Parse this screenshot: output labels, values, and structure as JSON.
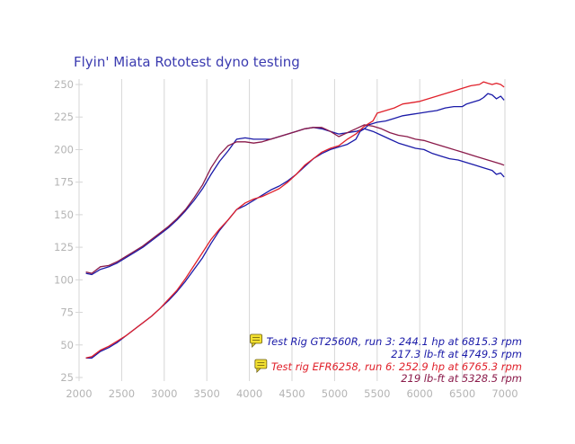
{
  "chart_data": {
    "type": "line",
    "title": "Flyin' Miata Rototest dyno testing",
    "xlabel": "",
    "ylabel": "",
    "xlim": [
      2000,
      7000
    ],
    "ylim": [
      25,
      260
    ],
    "x_ticks": [
      "2000",
      "2500",
      "3000",
      "3500",
      "4000",
      "4500",
      "5000",
      "5500",
      "6000",
      "6500",
      "7000"
    ],
    "y_ticks": [
      "25",
      "50",
      "75",
      "100",
      "125",
      "150",
      "175",
      "200",
      "225",
      "250"
    ],
    "grid": "vertical",
    "legend_position": "bottom-right",
    "legend": [
      {
        "text": "Test Rig GT2560R, run 3: 244.1 hp at 6815.3 rpm",
        "color": "#1a1aa8",
        "icon": "note-icon"
      },
      {
        "text": "217.3 lb-ft at 4749.5 rpm",
        "color": "#1a1aa8",
        "icon": ""
      },
      {
        "text": "Test rig EFR6258, run 6: 252.9 hp at 6765.3 rpm",
        "color": "#e0202a",
        "icon": "note-icon"
      },
      {
        "text": "219 lb-ft at 5328.5 rpm",
        "color": "#8a1a4a",
        "icon": ""
      }
    ],
    "series": [
      {
        "key": "gt_hp",
        "color": "#1a1aa8",
        "points": [
          [
            2080,
            40
          ],
          [
            2150,
            40
          ],
          [
            2250,
            45
          ],
          [
            2350,
            48
          ],
          [
            2450,
            52
          ],
          [
            2550,
            57
          ],
          [
            2650,
            62
          ],
          [
            2750,
            67
          ],
          [
            2850,
            72
          ],
          [
            2950,
            78
          ],
          [
            3050,
            84
          ],
          [
            3150,
            91
          ],
          [
            3250,
            99
          ],
          [
            3350,
            108
          ],
          [
            3450,
            117
          ],
          [
            3550,
            128
          ],
          [
            3650,
            138
          ],
          [
            3750,
            146
          ],
          [
            3850,
            154
          ],
          [
            3950,
            157
          ],
          [
            4050,
            161
          ],
          [
            4150,
            165
          ],
          [
            4250,
            169
          ],
          [
            4350,
            172
          ],
          [
            4450,
            176
          ],
          [
            4550,
            181
          ],
          [
            4650,
            187
          ],
          [
            4750,
            193
          ],
          [
            4850,
            197
          ],
          [
            4950,
            200
          ],
          [
            5050,
            202
          ],
          [
            5150,
            204
          ],
          [
            5250,
            208
          ],
          [
            5300,
            214
          ],
          [
            5350,
            216
          ],
          [
            5400,
            219
          ],
          [
            5500,
            221
          ],
          [
            5600,
            222
          ],
          [
            5700,
            224
          ],
          [
            5800,
            226
          ],
          [
            5900,
            227
          ],
          [
            6000,
            228
          ],
          [
            6100,
            229
          ],
          [
            6200,
            230
          ],
          [
            6300,
            232
          ],
          [
            6400,
            233
          ],
          [
            6500,
            233
          ],
          [
            6550,
            235
          ],
          [
            6600,
            236
          ],
          [
            6700,
            238
          ],
          [
            6750,
            240
          ],
          [
            6800,
            243
          ],
          [
            6850,
            242
          ],
          [
            6900,
            239
          ],
          [
            6950,
            241
          ],
          [
            6990,
            238
          ]
        ]
      },
      {
        "key": "gt_tq",
        "color": "#1a1aa8",
        "points": [
          [
            2080,
            105
          ],
          [
            2150,
            104
          ],
          [
            2250,
            108
          ],
          [
            2350,
            110
          ],
          [
            2450,
            113
          ],
          [
            2550,
            117
          ],
          [
            2650,
            121
          ],
          [
            2750,
            125
          ],
          [
            2850,
            130
          ],
          [
            2950,
            135
          ],
          [
            3050,
            140
          ],
          [
            3150,
            146
          ],
          [
            3250,
            153
          ],
          [
            3350,
            161
          ],
          [
            3450,
            170
          ],
          [
            3550,
            181
          ],
          [
            3650,
            191
          ],
          [
            3750,
            199
          ],
          [
            3850,
            208
          ],
          [
            3950,
            209
          ],
          [
            4050,
            208
          ],
          [
            4150,
            208
          ],
          [
            4250,
            208
          ],
          [
            4350,
            210
          ],
          [
            4450,
            212
          ],
          [
            4550,
            214
          ],
          [
            4650,
            216
          ],
          [
            4750,
            217
          ],
          [
            4850,
            216
          ],
          [
            4950,
            214
          ],
          [
            5050,
            212
          ],
          [
            5150,
            213
          ],
          [
            5250,
            214
          ],
          [
            5350,
            216
          ],
          [
            5450,
            214
          ],
          [
            5550,
            211
          ],
          [
            5650,
            208
          ],
          [
            5750,
            205
          ],
          [
            5850,
            203
          ],
          [
            5950,
            201
          ],
          [
            6050,
            200
          ],
          [
            6150,
            197
          ],
          [
            6250,
            195
          ],
          [
            6350,
            193
          ],
          [
            6450,
            192
          ],
          [
            6550,
            190
          ],
          [
            6650,
            188
          ],
          [
            6750,
            186
          ],
          [
            6850,
            184
          ],
          [
            6900,
            181
          ],
          [
            6950,
            182
          ],
          [
            6990,
            179
          ]
        ]
      },
      {
        "key": "efr_hp",
        "color": "#e0202a",
        "points": [
          [
            2080,
            40
          ],
          [
            2150,
            41
          ],
          [
            2250,
            46
          ],
          [
            2350,
            49
          ],
          [
            2450,
            53
          ],
          [
            2550,
            57
          ],
          [
            2650,
            62
          ],
          [
            2750,
            67
          ],
          [
            2850,
            72
          ],
          [
            2950,
            78
          ],
          [
            3050,
            85
          ],
          [
            3150,
            92
          ],
          [
            3250,
            101
          ],
          [
            3350,
            111
          ],
          [
            3450,
            121
          ],
          [
            3550,
            131
          ],
          [
            3650,
            139
          ],
          [
            3750,
            146
          ],
          [
            3850,
            154
          ],
          [
            3950,
            159
          ],
          [
            4050,
            162
          ],
          [
            4150,
            164
          ],
          [
            4250,
            167
          ],
          [
            4350,
            170
          ],
          [
            4450,
            175
          ],
          [
            4550,
            181
          ],
          [
            4650,
            188
          ],
          [
            4750,
            193
          ],
          [
            4850,
            198
          ],
          [
            4950,
            201
          ],
          [
            5050,
            203
          ],
          [
            5150,
            208
          ],
          [
            5250,
            212
          ],
          [
            5350,
            218
          ],
          [
            5450,
            222
          ],
          [
            5500,
            228
          ],
          [
            5600,
            230
          ],
          [
            5700,
            232
          ],
          [
            5800,
            235
          ],
          [
            5900,
            236
          ],
          [
            6000,
            237
          ],
          [
            6100,
            239
          ],
          [
            6200,
            241
          ],
          [
            6300,
            243
          ],
          [
            6400,
            245
          ],
          [
            6500,
            247
          ],
          [
            6600,
            249
          ],
          [
            6700,
            250
          ],
          [
            6750,
            252
          ],
          [
            6800,
            251
          ],
          [
            6850,
            250
          ],
          [
            6900,
            251
          ],
          [
            6950,
            250
          ],
          [
            6990,
            248
          ]
        ]
      },
      {
        "key": "efr_tq",
        "color": "#8a1a4a",
        "points": [
          [
            2080,
            106
          ],
          [
            2150,
            105
          ],
          [
            2250,
            110
          ],
          [
            2350,
            111
          ],
          [
            2450,
            114
          ],
          [
            2550,
            118
          ],
          [
            2650,
            122
          ],
          [
            2750,
            126
          ],
          [
            2850,
            131
          ],
          [
            2950,
            136
          ],
          [
            3050,
            141
          ],
          [
            3150,
            147
          ],
          [
            3250,
            154
          ],
          [
            3350,
            163
          ],
          [
            3450,
            173
          ],
          [
            3550,
            186
          ],
          [
            3650,
            196
          ],
          [
            3750,
            203
          ],
          [
            3850,
            206
          ],
          [
            3950,
            206
          ],
          [
            4050,
            205
          ],
          [
            4150,
            206
          ],
          [
            4250,
            208
          ],
          [
            4350,
            210
          ],
          [
            4450,
            212
          ],
          [
            4550,
            214
          ],
          [
            4650,
            216
          ],
          [
            4750,
            217
          ],
          [
            4850,
            217
          ],
          [
            4950,
            214
          ],
          [
            5050,
            210
          ],
          [
            5150,
            213
          ],
          [
            5250,
            216
          ],
          [
            5350,
            219
          ],
          [
            5450,
            218
          ],
          [
            5550,
            216
          ],
          [
            5650,
            213
          ],
          [
            5750,
            211
          ],
          [
            5850,
            210
          ],
          [
            5950,
            208
          ],
          [
            6050,
            207
          ],
          [
            6150,
            205
          ],
          [
            6250,
            203
          ],
          [
            6350,
            201
          ],
          [
            6450,
            199
          ],
          [
            6550,
            197
          ],
          [
            6650,
            195
          ],
          [
            6750,
            193
          ],
          [
            6850,
            191
          ],
          [
            6950,
            189
          ],
          [
            6990,
            188
          ]
        ]
      }
    ]
  }
}
